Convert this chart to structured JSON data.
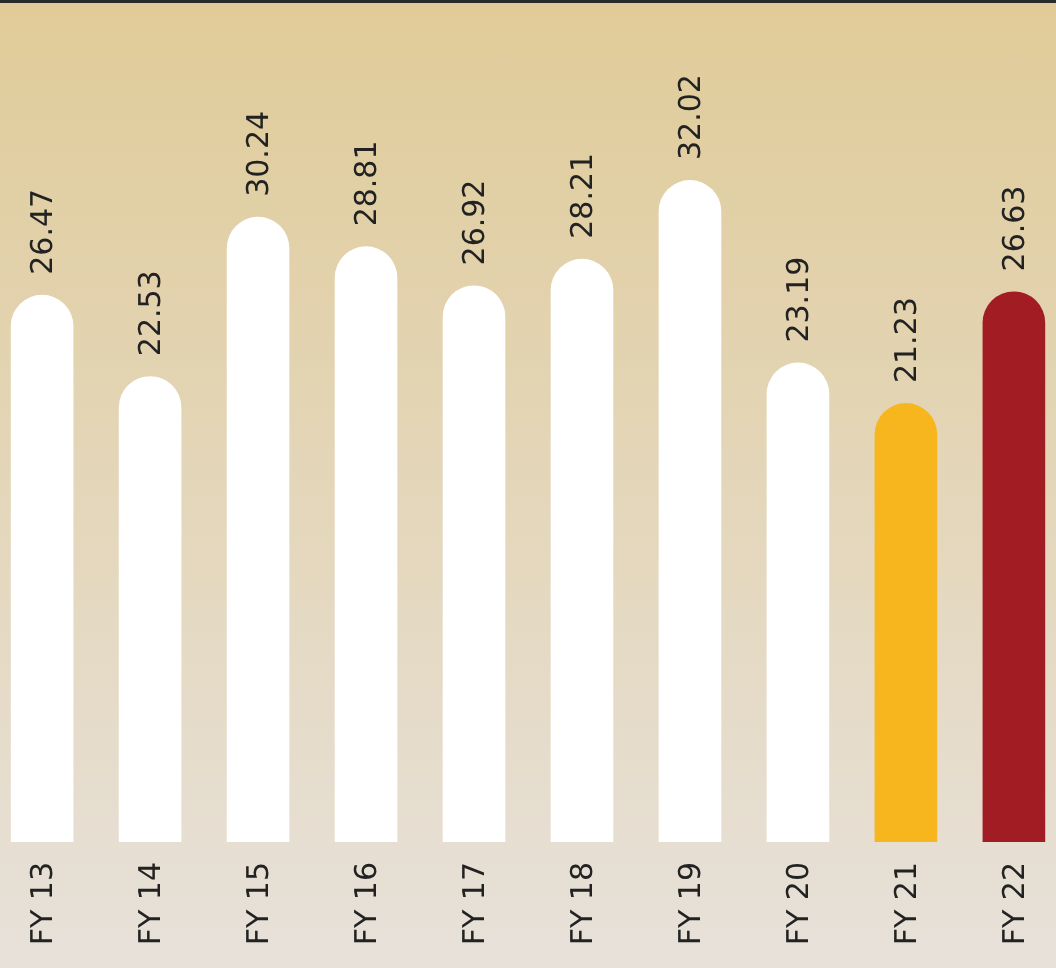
{
  "chart_data": {
    "type": "bar",
    "categories": [
      "FY 13",
      "FY 14",
      "FY 15",
      "FY 16",
      "FY 17",
      "FY 18",
      "FY 19",
      "FY 20",
      "FY 21",
      "FY 22"
    ],
    "values": [
      26.47,
      22.53,
      30.24,
      28.81,
      26.92,
      28.21,
      32.02,
      23.19,
      21.23,
      26.63
    ],
    "colors": [
      "#ffffff",
      "#ffffff",
      "#ffffff",
      "#ffffff",
      "#ffffff",
      "#ffffff",
      "#ffffff",
      "#ffffff",
      "#f8b61e",
      "#a21c24"
    ],
    "data_labels": true,
    "tick_labels": "x"
  }
}
